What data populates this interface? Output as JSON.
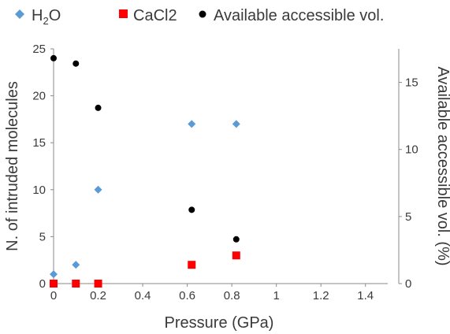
{
  "chart_data": {
    "type": "scatter",
    "xlabel": "Pressure (GPa)",
    "ylabel_left": "N. of intruded molecules",
    "ylabel_right": "Available accessible vol. (%)",
    "xlim": [
      0,
      1.5
    ],
    "ylim_left": [
      0,
      25
    ],
    "ylim_right": [
      0,
      17.5
    ],
    "x_ticks": [
      0,
      0.2,
      0.4,
      0.6,
      0.8,
      1,
      1.2,
      1.4
    ],
    "x_tick_labels": [
      "0",
      "0.2",
      "0.4",
      "0.6",
      "0.8",
      "1",
      "1.2",
      "1.4"
    ],
    "y_left_ticks": [
      0,
      5,
      10,
      15,
      20,
      25
    ],
    "y_left_tick_labels": [
      "0",
      "5",
      "10",
      "15",
      "20",
      "25"
    ],
    "y_right_ticks": [
      0,
      5,
      10,
      15
    ],
    "y_right_tick_labels": [
      "0",
      "5",
      "10",
      "15"
    ],
    "grid": false,
    "legend_position": "top",
    "series": [
      {
        "name": "H2O",
        "legend_main": "H",
        "legend_sub": "2",
        "legend_tail": "O",
        "marker": "diamond",
        "color": "#5b9bd5",
        "axis": "left",
        "points": [
          [
            0,
            1
          ],
          [
            0.1,
            2
          ],
          [
            0.2,
            10
          ],
          [
            0.62,
            17
          ],
          [
            0.82,
            17
          ]
        ]
      },
      {
        "name": "CaCl2",
        "marker": "square",
        "color": "#ff0000",
        "axis": "left",
        "points": [
          [
            0,
            0
          ],
          [
            0.1,
            0
          ],
          [
            0.2,
            0
          ],
          [
            0.62,
            2
          ],
          [
            0.82,
            3
          ]
        ]
      },
      {
        "name": "Available accessible vol.",
        "marker": "circle",
        "color": "#000000",
        "axis": "right",
        "points": [
          [
            0,
            16.8
          ],
          [
            0.1,
            16.4
          ],
          [
            0.2,
            13.1
          ],
          [
            0.62,
            5.5
          ],
          [
            0.82,
            3.3
          ]
        ]
      }
    ]
  }
}
